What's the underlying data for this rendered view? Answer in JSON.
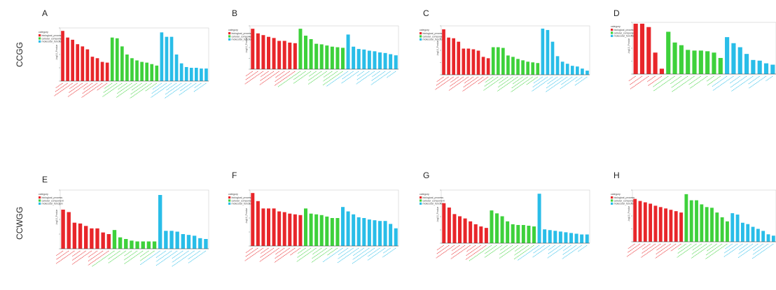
{
  "row_labels": [
    "CCGG",
    "CCWGG"
  ],
  "colors": {
    "biological_process": "#e8262a",
    "cellular_component": "#3ed13b",
    "molecular_function": "#29bde8",
    "frame": "#cfcfcf",
    "baseline": "#444444"
  },
  "legend": {
    "title": "category",
    "items": [
      "biological_process",
      "cellular_component",
      "molecular_function"
    ]
  },
  "ylabel": "-log10_Pvalue",
  "chart_data": [
    {
      "type": "bar",
      "panel": "A",
      "row": "CCGG",
      "series": [
        {
          "name": "biological_process",
          "values": [
            6.8,
            5.9,
            5.6,
            5.0,
            4.7,
            4.3,
            3.3,
            3.1,
            2.6,
            2.5
          ]
        },
        {
          "name": "cellular_component",
          "values": [
            5.9,
            5.8,
            4.7,
            3.6,
            3.1,
            2.8,
            2.6,
            2.5,
            2.3,
            2.1
          ]
        },
        {
          "name": "molecular_function",
          "values": [
            6.6,
            6.0,
            6.0,
            3.6,
            2.4,
            1.9,
            1.8,
            1.8,
            1.7,
            1.7
          ]
        }
      ],
      "ylim": [
        0,
        7.2
      ]
    },
    {
      "type": "bar",
      "panel": "B",
      "row": "CCGG",
      "series": [
        {
          "name": "biological_process",
          "values": [
            7.0,
            6.2,
            5.9,
            5.6,
            5.4,
            4.9,
            4.9,
            4.6,
            4.5
          ]
        },
        {
          "name": "cellular_component",
          "values": [
            7.0,
            5.8,
            5.2,
            4.4,
            4.3,
            4.1,
            3.9,
            3.8,
            3.7
          ]
        },
        {
          "name": "molecular_function",
          "values": [
            6.0,
            3.9,
            3.5,
            3.4,
            3.2,
            3.1,
            2.9,
            2.8,
            2.6,
            2.4
          ]
        }
      ],
      "ylim": [
        0,
        7.5
      ]
    },
    {
      "type": "bar",
      "panel": "C",
      "row": "CCGG",
      "series": [
        {
          "name": "biological_process",
          "values": [
            6.6,
            5.4,
            5.3,
            4.8,
            3.8,
            3.8,
            3.7,
            3.5,
            2.6,
            2.4
          ]
        },
        {
          "name": "cellular_component",
          "values": [
            4.0,
            4.0,
            3.9,
            2.8,
            2.6,
            2.3,
            2.1,
            1.9,
            1.8,
            1.7
          ]
        },
        {
          "name": "molecular_function",
          "values": [
            6.7,
            6.5,
            4.8,
            2.7,
            1.9,
            1.6,
            1.3,
            1.2,
            0.9,
            0.6
          ]
        }
      ],
      "ylim": [
        0,
        7.1
      ]
    },
    {
      "type": "bar",
      "panel": "D",
      "row": "CCGG",
      "series": [
        {
          "name": "biological_process",
          "values": [
            7.5,
            7.5,
            7.0,
            3.2,
            0.8
          ]
        },
        {
          "name": "cellular_component",
          "values": [
            6.3,
            4.7,
            4.3,
            3.6,
            3.5,
            3.5,
            3.4,
            3.2,
            2.4
          ]
        },
        {
          "name": "molecular_function",
          "values": [
            5.5,
            4.6,
            4.0,
            3.0,
            2.1,
            2.0,
            1.6,
            1.4
          ]
        }
      ],
      "ylim": [
        0,
        7.7
      ]
    },
    {
      "type": "bar",
      "panel": "E",
      "row": "CCWGG",
      "series": [
        {
          "name": "biological_process",
          "values": [
            4.8,
            4.5,
            3.2,
            3.1,
            2.8,
            2.5,
            2.5,
            2.0,
            1.8
          ]
        },
        {
          "name": "cellular_component",
          "values": [
            2.3,
            1.4,
            1.2,
            1.0,
            0.9,
            0.9,
            0.9,
            0.9
          ]
        },
        {
          "name": "molecular_function",
          "values": [
            6.6,
            2.2,
            2.2,
            2.1,
            1.8,
            1.7,
            1.6,
            1.3,
            1.2
          ]
        }
      ],
      "ylim": [
        0,
        7.2
      ]
    },
    {
      "type": "bar",
      "panel": "F",
      "row": "CCWGG",
      "series": [
        {
          "name": "biological_process",
          "values": [
            7.2,
            6.1,
            5.1,
            5.1,
            5.1,
            4.7,
            4.6,
            4.4,
            4.3,
            4.2
          ]
        },
        {
          "name": "cellular_component",
          "values": [
            5.1,
            4.4,
            4.3,
            4.2,
            4.0,
            3.8,
            3.8
          ]
        },
        {
          "name": "molecular_function",
          "values": [
            5.3,
            4.7,
            4.3,
            3.9,
            3.8,
            3.6,
            3.5,
            3.4,
            3.4,
            3.0,
            2.4
          ]
        }
      ],
      "ylim": [
        0,
        7.6
      ]
    },
    {
      "type": "bar",
      "panel": "G",
      "row": "CCWGG",
      "series": [
        {
          "name": "biological_process",
          "values": [
            5.5,
            4.9,
            4.0,
            3.7,
            3.4,
            3.0,
            2.6,
            2.3,
            2.1
          ]
        },
        {
          "name": "cellular_component",
          "values": [
            4.5,
            4.1,
            3.7,
            3.0,
            2.6,
            2.5,
            2.5,
            2.4,
            2.3
          ]
        },
        {
          "name": "molecular_function",
          "values": [
            6.8,
            1.9,
            1.8,
            1.7,
            1.6,
            1.5,
            1.4,
            1.3,
            1.2,
            1.2
          ]
        }
      ],
      "ylim": [
        0,
        7.3
      ]
    },
    {
      "type": "bar",
      "panel": "H",
      "row": "CCWGG",
      "series": [
        {
          "name": "biological_process",
          "values": [
            6.3,
            6.0,
            5.8,
            5.6,
            5.3,
            5.1,
            4.9,
            4.7,
            4.5,
            4.3
          ]
        },
        {
          "name": "cellular_component",
          "values": [
            7.0,
            6.1,
            6.1,
            5.5,
            5.1,
            5.0,
            4.3,
            3.6,
            3.0
          ]
        },
        {
          "name": "molecular_function",
          "values": [
            4.2,
            4.0,
            2.8,
            2.6,
            2.2,
            1.9,
            1.6,
            1.1,
            0.9
          ]
        }
      ],
      "ylim": [
        0,
        7.6
      ]
    }
  ]
}
